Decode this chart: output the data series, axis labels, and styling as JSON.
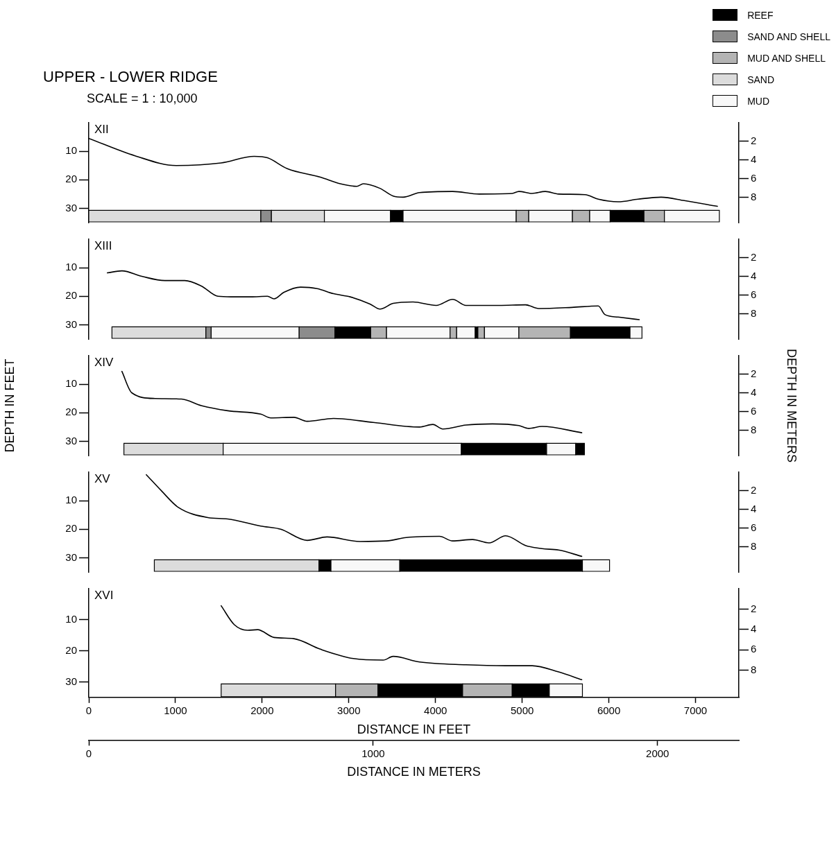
{
  "chart_data": [
    {
      "type": "other",
      "title": "UPPER - LOWER RIDGE",
      "subtitle": "SCALE = 1 : 10,000",
      "categories": [
        "REEF",
        "SAND AND SHELL",
        "MUD AND SHELL",
        "SAND",
        "MUD"
      ],
      "colors": [
        "#000000",
        "#8c8c8c",
        "#b4b4b4",
        "#dcdcdc",
        "#f8f8f8"
      ]
    },
    {
      "type": "line",
      "annotations": [
        "XII"
      ],
      "grid": false,
      "marker": "none",
      "tick_labels": "y",
      "xlim": [
        0,
        7500
      ],
      "ylim": [
        35,
        0
      ],
      "yticks": [
        10,
        20,
        30
      ],
      "y2lim": [
        10.67,
        0
      ],
      "y2ticks": [
        2,
        4,
        6,
        8
      ],
      "series": [
        {
          "type": "line",
          "color": "#000000",
          "x": [
            0,
            534,
            1008,
            1527,
            1908,
            2061,
            2290,
            2672,
            2901,
            3092,
            3168,
            3359,
            3511,
            3626,
            3817,
            4198,
            4504,
            4885,
            4962,
            5115,
            5267,
            5420,
            5725,
            5878,
            6107,
            6336,
            6603,
            6870,
            7252
          ],
          "values": [
            5.5,
            11.6,
            15,
            14.1,
            11.8,
            12.3,
            16.1,
            19.1,
            21.4,
            22.3,
            21.4,
            23,
            25.7,
            26.1,
            24.5,
            24.1,
            25,
            24.8,
            24.1,
            24.8,
            24.1,
            25,
            25.2,
            26.8,
            27.7,
            26.8,
            26.1,
            27.3,
            29.3
          ]
        }
      ],
      "bands": [
        {
          "axis": "x",
          "from": 0,
          "to": 1985,
          "color": "#dcdcdc"
        },
        {
          "axis": "x",
          "from": 1985,
          "to": 2107,
          "color": "#8c8c8c"
        },
        {
          "axis": "x",
          "from": 2107,
          "to": 2718,
          "color": "#dcdcdc"
        },
        {
          "axis": "x",
          "from": 2718,
          "to": 3481,
          "color": "#f8f8f8"
        },
        {
          "axis": "x",
          "from": 3481,
          "to": 3626,
          "color": "#000000"
        },
        {
          "axis": "x",
          "from": 3626,
          "to": 4931,
          "color": "#f8f8f8"
        },
        {
          "axis": "x",
          "from": 4931,
          "to": 5076,
          "color": "#b4b4b4"
        },
        {
          "axis": "x",
          "from": 5076,
          "to": 5580,
          "color": "#f8f8f8"
        },
        {
          "axis": "x",
          "from": 5580,
          "to": 5779,
          "color": "#b4b4b4"
        },
        {
          "axis": "x",
          "from": 5779,
          "to": 6015,
          "color": "#f8f8f8"
        },
        {
          "axis": "x",
          "from": 6015,
          "to": 6405,
          "color": "#000000"
        },
        {
          "axis": "x",
          "from": 6405,
          "to": 6641,
          "color": "#b4b4b4"
        },
        {
          "axis": "x",
          "from": 6641,
          "to": 7275,
          "color": "#f8f8f8"
        }
      ]
    },
    {
      "type": "line",
      "annotations": [
        "XIII"
      ],
      "grid": false,
      "marker": "none",
      "tick_labels": "y",
      "xlim": [
        0,
        7500
      ],
      "ylim": [
        35,
        0
      ],
      "yticks": [
        10,
        20,
        30
      ],
      "y2lim": [
        10.67,
        0
      ],
      "y2ticks": [
        2,
        4,
        6,
        8
      ],
      "series": [
        {
          "type": "line",
          "color": "#000000",
          "x": [
            214,
            382,
            611,
            878,
            1107,
            1298,
            1489,
            1641,
            1870,
            2061,
            2137,
            2252,
            2443,
            2634,
            2824,
            3015,
            3244,
            3359,
            3511,
            3740,
            4008,
            4198,
            4351,
            4733,
            5038,
            5191,
            5573,
            5878,
            5954,
            6107,
            6351
          ],
          "values": [
            11.8,
            11.1,
            13,
            14.5,
            14.5,
            16.4,
            20,
            20.2,
            20.2,
            20,
            20.9,
            18.6,
            16.8,
            17.3,
            19.1,
            20.2,
            22.7,
            24.5,
            22.5,
            22,
            23.2,
            21.1,
            23.2,
            23.2,
            23,
            24.3,
            23.9,
            23.4,
            26.4,
            27.3,
            28.2
          ]
        }
      ],
      "bands": [
        {
          "axis": "x",
          "from": 267,
          "to": 1351,
          "color": "#dcdcdc"
        },
        {
          "axis": "x",
          "from": 1351,
          "to": 1412,
          "color": "#8c8c8c"
        },
        {
          "axis": "x",
          "from": 1412,
          "to": 2427,
          "color": "#f8f8f8"
        },
        {
          "axis": "x",
          "from": 2427,
          "to": 2840,
          "color": "#8c8c8c"
        },
        {
          "axis": "x",
          "from": 2840,
          "to": 3252,
          "color": "#000000"
        },
        {
          "axis": "x",
          "from": 3252,
          "to": 3435,
          "color": "#b4b4b4"
        },
        {
          "axis": "x",
          "from": 3435,
          "to": 4168,
          "color": "#f8f8f8"
        },
        {
          "axis": "x",
          "from": 4168,
          "to": 4244,
          "color": "#b4b4b4"
        },
        {
          "axis": "x",
          "from": 4244,
          "to": 4458,
          "color": "#f8f8f8"
        },
        {
          "axis": "x",
          "from": 4458,
          "to": 4489,
          "color": "#000000"
        },
        {
          "axis": "x",
          "from": 4489,
          "to": 4565,
          "color": "#b4b4b4"
        },
        {
          "axis": "x",
          "from": 4565,
          "to": 4962,
          "color": "#f8f8f8"
        },
        {
          "axis": "x",
          "from": 4962,
          "to": 5557,
          "color": "#b4b4b4"
        },
        {
          "axis": "x",
          "from": 5557,
          "to": 6244,
          "color": "#000000"
        },
        {
          "axis": "x",
          "from": 6244,
          "to": 6382,
          "color": "#f8f8f8"
        }
      ]
    },
    {
      "type": "line",
      "annotations": [
        "XIV"
      ],
      "ylabel": "DEPTH IN FEET",
      "y2label": "DEPTH IN METERS",
      "grid": false,
      "marker": "none",
      "tick_labels": "y",
      "xlim": [
        0,
        7500
      ],
      "ylim": [
        35,
        0
      ],
      "yticks": [
        10,
        20,
        30
      ],
      "y2lim": [
        10.67,
        0
      ],
      "y2ticks": [
        2,
        4,
        6,
        8
      ],
      "series": [
        {
          "type": "line",
          "color": "#000000",
          "x": [
            382,
            496,
            763,
            1069,
            1298,
            1603,
            1985,
            2099,
            2366,
            2519,
            2824,
            3282,
            3817,
            3969,
            4084,
            4351,
            4656,
            4962,
            5076,
            5229,
            5687
          ],
          "values": [
            5.5,
            13,
            15,
            15.2,
            17.5,
            19.3,
            20.5,
            21.8,
            21.6,
            23,
            22,
            23.4,
            25,
            24.1,
            25.7,
            24.3,
            23.9,
            24.5,
            25.5,
            24.8,
            27
          ]
        }
      ],
      "bands": [
        {
          "axis": "x",
          "from": 405,
          "to": 1550,
          "color": "#dcdcdc"
        },
        {
          "axis": "x",
          "from": 1550,
          "to": 4298,
          "color": "#f8f8f8"
        },
        {
          "axis": "x",
          "from": 4298,
          "to": 5282,
          "color": "#000000"
        },
        {
          "axis": "x",
          "from": 5282,
          "to": 5618,
          "color": "#f8f8f8"
        },
        {
          "axis": "x",
          "from": 5618,
          "to": 5718,
          "color": "#000000"
        }
      ]
    },
    {
      "type": "line",
      "annotations": [
        "XV"
      ],
      "grid": false,
      "marker": "none",
      "tick_labels": "y",
      "xlim": [
        0,
        7500
      ],
      "ylim": [
        35,
        0
      ],
      "yticks": [
        10,
        20,
        30
      ],
      "y2lim": [
        10.67,
        0
      ],
      "y2ticks": [
        2,
        4,
        6,
        8
      ],
      "series": [
        {
          "type": "line",
          "color": "#000000",
          "x": [
            664,
            840,
            1031,
            1374,
            1603,
            1985,
            2214,
            2519,
            2748,
            3130,
            3435,
            3664,
            4046,
            4198,
            4427,
            4618,
            4809,
            5038,
            5229,
            5420,
            5687
          ],
          "values": [
            0.9,
            6.6,
            12.3,
            15.9,
            16.4,
            18.9,
            20,
            23.9,
            22.7,
            24.3,
            24.1,
            22.9,
            22.5,
            24.1,
            23.6,
            24.8,
            22.3,
            25.7,
            26.8,
            27.3,
            29.5
          ]
        }
      ],
      "bands": [
        {
          "axis": "x",
          "from": 756,
          "to": 2656,
          "color": "#dcdcdc"
        },
        {
          "axis": "x",
          "from": 2656,
          "to": 2794,
          "color": "#000000"
        },
        {
          "axis": "x",
          "from": 2794,
          "to": 3588,
          "color": "#f8f8f8"
        },
        {
          "axis": "x",
          "from": 3588,
          "to": 5695,
          "color": "#000000"
        },
        {
          "axis": "x",
          "from": 5695,
          "to": 6008,
          "color": "#f8f8f8"
        }
      ]
    },
    {
      "type": "line",
      "annotations": [
        "XVI"
      ],
      "xlabel": "DISTANCE IN FEET",
      "x2label": "DISTANCE IN METERS",
      "grid": false,
      "marker": "none",
      "xlim": [
        0,
        7500
      ],
      "xticks": [
        0,
        1000,
        2000,
        3000,
        4000,
        5000,
        6000,
        7000
      ],
      "x2lim": [
        0,
        2286
      ],
      "x2ticks": [
        0,
        1000,
        2000
      ],
      "ylim": [
        35,
        0
      ],
      "yticks": [
        10,
        20,
        30
      ],
      "y2lim": [
        10.67,
        0
      ],
      "y2ticks": [
        2,
        4,
        6,
        8
      ],
      "series": [
        {
          "type": "line",
          "color": "#000000",
          "x": [
            1527,
            1679,
            1832,
            1947,
            2137,
            2366,
            2672,
            3053,
            3397,
            3511,
            3817,
            4351,
            4809,
            5115,
            5420,
            5687
          ],
          "values": [
            5.5,
            11.6,
            13.4,
            13.2,
            15.7,
            16.1,
            19.5,
            22.5,
            23,
            21.8,
            23.6,
            24.5,
            24.8,
            24.8,
            26.8,
            29.3
          ]
        }
      ],
      "bands": [
        {
          "axis": "x",
          "from": 1527,
          "to": 2847,
          "color": "#dcdcdc"
        },
        {
          "axis": "x",
          "from": 2847,
          "to": 3336,
          "color": "#b4b4b4"
        },
        {
          "axis": "x",
          "from": 3336,
          "to": 4313,
          "color": "#000000"
        },
        {
          "axis": "x",
          "from": 4313,
          "to": 4885,
          "color": "#b4b4b4"
        },
        {
          "axis": "x",
          "from": 4885,
          "to": 5313,
          "color": "#000000"
        },
        {
          "axis": "x",
          "from": 5313,
          "to": 5695,
          "color": "#f8f8f8"
        }
      ]
    }
  ]
}
